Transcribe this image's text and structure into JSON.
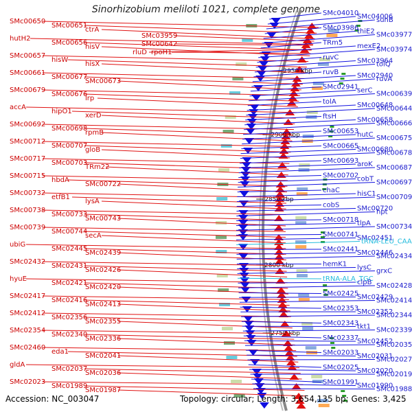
{
  "title": "Sinorhizobium meliloti 1021, complete genome",
  "footer": {
    "accession": "Accession: NC_003047",
    "summary": "Topology: circular; Length: 3,654,135 bp; Genes: 3,425"
  },
  "colors": {
    "forward": "#e01010",
    "reverse": "#1010e0",
    "rna": "#22bbdd",
    "backbone": "#888888"
  },
  "scale": {
    "unit": "kbp",
    "ticks": [
      {
        "text": "2950 kbp"
      },
      {
        "text": "2900 kbp"
      },
      {
        "text": "2850 kbp"
      },
      {
        "text": "2800 kbp"
      },
      {
        "text": "2750 kbp"
      }
    ]
  },
  "left_labels": [
    "SMc00650",
    "SMc00651",
    "ctrA",
    "hutH2",
    "SMc00656",
    "hisV",
    "SMc00657",
    "hisW",
    "hisX",
    "SMc00661",
    "SMc00677",
    "SMc00673",
    "SMc00679",
    "SMc00676",
    "lrp",
    "accA",
    "hipO1",
    "xerD",
    "SMc00692",
    "SMc00698",
    "rpmB",
    "SMc00712",
    "SMc00707",
    "gloB",
    "SMc00717",
    "SMc00703",
    "TRm22",
    "SMc00715",
    "hbdA",
    "SMc00722",
    "SMc00732",
    "etfB1",
    "lysA",
    "SMc00738",
    "SMc00733",
    "SMc00743",
    "SMc00739",
    "SMc00744",
    "secA",
    "ubiG",
    "SMc02445",
    "SMc02439",
    "SMc02432",
    "SMc02431",
    "SMc02426",
    "hyuE",
    "SMc02421",
    "SMc02420",
    "SMc02417",
    "SMc02416",
    "SMc02413",
    "SMc02412",
    "SMc02356",
    "SMc02355",
    "SMc02354",
    "SMc02340",
    "SMc02336",
    "SMc02460",
    "eda1",
    "SMc02041",
    "gldA",
    "SMc02037",
    "SMc02036",
    "SMc02023",
    "SMc01989",
    "SMc01987",
    "SMc03959",
    "SMc00642",
    "rluD",
    "rpoH1"
  ],
  "right_labels": [
    "SMc04010",
    "SMc04006",
    "suhB",
    "SMc03986",
    "thiE2",
    "SMc03977",
    "TRm5",
    "mexE2",
    "SMc03974",
    "ruvC",
    "SMc03964",
    "tolQ",
    "ruvB",
    "SMc02940",
    "ruvA",
    "SMc02941",
    "serC",
    "SMc00639",
    "tolA",
    "SMc00648",
    "SMc00644",
    "ftsH",
    "SMc00658",
    "SMc00666",
    "SMc00653",
    "hutC",
    "SMc00675",
    "SMc00665",
    "SMc00680",
    "SMc00678",
    "SMc00693",
    "aroK",
    "SMc00687",
    "SMc00702",
    "cobT",
    "SMc00697",
    "chaC",
    "hisC1",
    "SMc00709",
    "cobS",
    "SMc00720",
    "hpt",
    "SMc00718",
    "tlpA",
    "SMc00734",
    "SMc00741",
    "SMc02451",
    "tRNA-LEU_CAA",
    "SMc02441",
    "SMc02446",
    "SMc02434",
    "hemK1",
    "lysC",
    "grxC",
    "tRNA-ALA_TGC",
    "clpB",
    "SMc02428",
    "SMc02425",
    "SMc02429",
    "SMc02414",
    "SMc02353",
    "SMc02352",
    "SMc02344",
    "SMc02343",
    "tkt1",
    "SMc02339",
    "SMc02337",
    "SMc02452",
    "SMc02035",
    "SMc02033",
    "SMc02031",
    "SMc02027",
    "SMc02025",
    "SMc02020",
    "SMc02019",
    "SMc01991",
    "SMc01990",
    "SMc01988"
  ]
}
